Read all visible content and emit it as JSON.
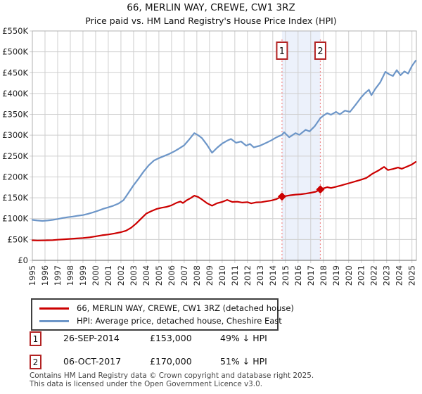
{
  "title": "66, MERLIN WAY, CREWE, CW1 3RZ",
  "subtitle": "Price paid vs. HM Land Registry's House Price Index (HPI)",
  "chart_data": {
    "type": "line",
    "x_range": [
      1995,
      2025.35
    ],
    "ylim": [
      0,
      550000
    ],
    "grid": true,
    "legend_position": "below",
    "y_ticks": [
      {
        "value": 0,
        "label": "£0"
      },
      {
        "value": 50000,
        "label": "£50K"
      },
      {
        "value": 100000,
        "label": "£100K"
      },
      {
        "value": 150000,
        "label": "£150K"
      },
      {
        "value": 200000,
        "label": "£200K"
      },
      {
        "value": 250000,
        "label": "£250K"
      },
      {
        "value": 300000,
        "label": "£300K"
      },
      {
        "value": 350000,
        "label": "£350K"
      },
      {
        "value": 400000,
        "label": "£400K"
      },
      {
        "value": 450000,
        "label": "£450K"
      },
      {
        "value": 500000,
        "label": "£500K"
      },
      {
        "value": 550000,
        "label": "£550K"
      }
    ],
    "x_ticks": [
      1995,
      1996,
      1997,
      1998,
      1999,
      2000,
      2001,
      2002,
      2003,
      2004,
      2005,
      2006,
      2007,
      2008,
      2009,
      2010,
      2011,
      2012,
      2013,
      2014,
      2015,
      2016,
      2017,
      2018,
      2019,
      2020,
      2021,
      2022,
      2023,
      2024,
      2025
    ],
    "series": [
      {
        "name": "66, MERLIN WAY, CREWE, CW1 3RZ (detached house)",
        "color": "#cc0000",
        "points": [
          [
            1995.0,
            48000
          ],
          [
            1995.4,
            47500
          ],
          [
            1995.8,
            47800
          ],
          [
            1996.2,
            48000
          ],
          [
            1996.6,
            48500
          ],
          [
            1997.0,
            49500
          ],
          [
            1997.5,
            50500
          ],
          [
            1998.0,
            51500
          ],
          [
            1998.5,
            52500
          ],
          [
            1999.0,
            53500
          ],
          [
            1999.5,
            55000
          ],
          [
            2000.0,
            57500
          ],
          [
            2000.5,
            60000
          ],
          [
            2001.0,
            62000
          ],
          [
            2001.5,
            64500
          ],
          [
            2002.0,
            67500
          ],
          [
            2002.4,
            71000
          ],
          [
            2002.8,
            78000
          ],
          [
            2003.2,
            88000
          ],
          [
            2003.6,
            100000
          ],
          [
            2004.0,
            112000
          ],
          [
            2004.4,
            118000
          ],
          [
            2004.8,
            123000
          ],
          [
            2005.2,
            126000
          ],
          [
            2005.6,
            128000
          ],
          [
            2006.0,
            132000
          ],
          [
            2006.4,
            138000
          ],
          [
            2006.7,
            141000
          ],
          [
            2006.9,
            137500
          ],
          [
            2007.2,
            144000
          ],
          [
            2007.5,
            149000
          ],
          [
            2007.8,
            155000
          ],
          [
            2008.1,
            152000
          ],
          [
            2008.4,
            146000
          ],
          [
            2008.8,
            137000
          ],
          [
            2009.2,
            131000
          ],
          [
            2009.6,
            137000
          ],
          [
            2010.0,
            140000
          ],
          [
            2010.4,
            145000
          ],
          [
            2010.8,
            140000
          ],
          [
            2011.2,
            140500
          ],
          [
            2011.6,
            138500
          ],
          [
            2012.0,
            139500
          ],
          [
            2012.3,
            136500
          ],
          [
            2012.7,
            139000
          ],
          [
            2013.1,
            139500
          ],
          [
            2013.5,
            141500
          ],
          [
            2013.9,
            143500
          ],
          [
            2014.3,
            147000
          ],
          [
            2014.73,
            153000
          ],
          [
            2015.0,
            154000
          ],
          [
            2015.4,
            156000
          ],
          [
            2015.8,
            157500
          ],
          [
            2016.2,
            158500
          ],
          [
            2016.6,
            160000
          ],
          [
            2017.0,
            162000
          ],
          [
            2017.4,
            164500
          ],
          [
            2017.76,
            170000
          ],
          [
            2018.0,
            172500
          ],
          [
            2018.3,
            175500
          ],
          [
            2018.6,
            173500
          ],
          [
            2019.0,
            176500
          ],
          [
            2019.4,
            179500
          ],
          [
            2019.8,
            183000
          ],
          [
            2020.2,
            186500
          ],
          [
            2020.6,
            190000
          ],
          [
            2021.0,
            193500
          ],
          [
            2021.4,
            197500
          ],
          [
            2021.9,
            208000
          ],
          [
            2022.3,
            214500
          ],
          [
            2022.8,
            224000
          ],
          [
            2023.1,
            216500
          ],
          [
            2023.5,
            219000
          ],
          [
            2023.9,
            222500
          ],
          [
            2024.2,
            219500
          ],
          [
            2024.6,
            224500
          ],
          [
            2025.0,
            230000
          ],
          [
            2025.3,
            236000
          ]
        ]
      },
      {
        "name": "HPI: Average price, detached house, Cheshire East",
        "color": "#6d96c8",
        "points": [
          [
            1995.0,
            97000
          ],
          [
            1995.4,
            95500
          ],
          [
            1995.8,
            94500
          ],
          [
            1996.2,
            95500
          ],
          [
            1996.6,
            97000
          ],
          [
            1997.0,
            99000
          ],
          [
            1997.4,
            101500
          ],
          [
            1997.8,
            103500
          ],
          [
            1998.2,
            105000
          ],
          [
            1998.6,
            107000
          ],
          [
            1999.0,
            108500
          ],
          [
            1999.4,
            111500
          ],
          [
            1999.8,
            115000
          ],
          [
            2000.2,
            119000
          ],
          [
            2000.6,
            123500
          ],
          [
            2001.0,
            127000
          ],
          [
            2001.4,
            131000
          ],
          [
            2001.8,
            136000
          ],
          [
            2002.2,
            144000
          ],
          [
            2002.6,
            162000
          ],
          [
            2003.0,
            180000
          ],
          [
            2003.4,
            196000
          ],
          [
            2003.8,
            213000
          ],
          [
            2004.2,
            228000
          ],
          [
            2004.6,
            239000
          ],
          [
            2005.0,
            245000
          ],
          [
            2005.4,
            250000
          ],
          [
            2005.8,
            255000
          ],
          [
            2006.2,
            261000
          ],
          [
            2006.6,
            268000
          ],
          [
            2007.0,
            276000
          ],
          [
            2007.4,
            290000
          ],
          [
            2007.8,
            305000
          ],
          [
            2008.1,
            300000
          ],
          [
            2008.4,
            293000
          ],
          [
            2008.8,
            277000
          ],
          [
            2009.2,
            258000
          ],
          [
            2009.6,
            270000
          ],
          [
            2010.0,
            280000
          ],
          [
            2010.4,
            287000
          ],
          [
            2010.7,
            291000
          ],
          [
            2011.1,
            282000
          ],
          [
            2011.5,
            285000
          ],
          [
            2011.9,
            275000
          ],
          [
            2012.2,
            279000
          ],
          [
            2012.5,
            271000
          ],
          [
            2013.0,
            275000
          ],
          [
            2013.5,
            282000
          ],
          [
            2013.9,
            288000
          ],
          [
            2014.3,
            295000
          ],
          [
            2014.73,
            301000
          ],
          [
            2014.9,
            307000
          ],
          [
            2015.3,
            295000
          ],
          [
            2015.8,
            305000
          ],
          [
            2016.1,
            301000
          ],
          [
            2016.6,
            313000
          ],
          [
            2016.9,
            309000
          ],
          [
            2017.3,
            321000
          ],
          [
            2017.76,
            341000
          ],
          [
            2018.0,
            347000
          ],
          [
            2018.3,
            353000
          ],
          [
            2018.6,
            349000
          ],
          [
            2019.0,
            356000
          ],
          [
            2019.3,
            350000
          ],
          [
            2019.7,
            359000
          ],
          [
            2020.1,
            356000
          ],
          [
            2020.5,
            371000
          ],
          [
            2021.0,
            391000
          ],
          [
            2021.3,
            401000
          ],
          [
            2021.6,
            409000
          ],
          [
            2021.8,
            396000
          ],
          [
            2022.1,
            411000
          ],
          [
            2022.5,
            427000
          ],
          [
            2022.9,
            452000
          ],
          [
            2023.2,
            446000
          ],
          [
            2023.5,
            442000
          ],
          [
            2023.8,
            456000
          ],
          [
            2024.1,
            444000
          ],
          [
            2024.4,
            453000
          ],
          [
            2024.7,
            448000
          ],
          [
            2025.0,
            466000
          ],
          [
            2025.3,
            479000
          ]
        ]
      }
    ],
    "sale_markers": [
      {
        "label": "1",
        "year": 2014.73,
        "price": 153000
      },
      {
        "label": "2",
        "year": 2017.76,
        "price": 170000
      }
    ],
    "shaded_region": {
      "from": 2014.73,
      "to": 2017.76,
      "color": "#e9effa"
    },
    "marker_line_color": "#f28b8b",
    "marker_box_border_color": "#b22222",
    "marker_point_color": "#cc0000"
  },
  "legend": {
    "entries": [
      {
        "label": "66, MERLIN WAY, CREWE, CW1 3RZ (detached house)"
      },
      {
        "label": "HPI: Average price, detached house, Cheshire East"
      }
    ]
  },
  "transactions": [
    {
      "num": "1",
      "date": "26-SEP-2014",
      "price": "£153,000",
      "hpi": "49% ↓ HPI"
    },
    {
      "num": "2",
      "date": "06-OCT-2017",
      "price": "£170,000",
      "hpi": "51% ↓ HPI"
    }
  ],
  "footer": {
    "line1": "Contains HM Land Registry data © Crown copyright and database right 2025.",
    "line2": "This data is licensed under the Open Government Licence v3.0."
  }
}
